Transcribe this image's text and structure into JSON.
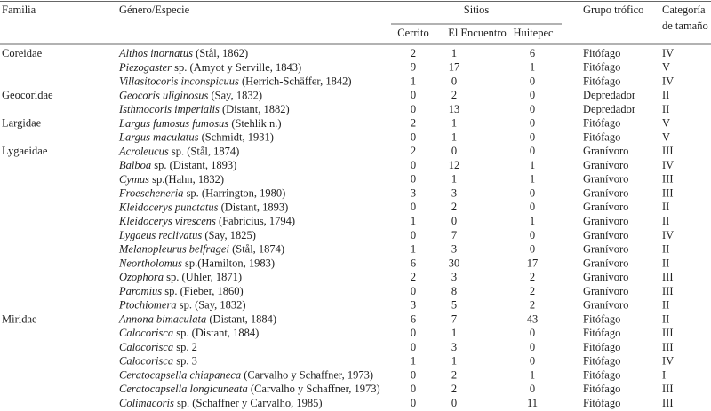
{
  "header": {
    "familia": "Familia",
    "especie": "Género/Especie",
    "sitios": "Sitios",
    "cerrito": "Cerrito",
    "encuentro": "El Encuentro",
    "huitepec": "Huitepec",
    "grupo": "Grupo trófico",
    "categoria_1": "Categoría",
    "categoria_2": "de tamaño"
  },
  "table": {
    "rows": [
      {
        "familia": "Coreidae",
        "taxon": "Althos inornatus",
        "autor": "(Stål, 1862)",
        "cerrito": 2,
        "encuentro": 1,
        "huitepec": 6,
        "grupo": "Fitófago",
        "categoria": "IV"
      },
      {
        "taxon": "Piezogaster",
        "autor": "sp. (Amyot y Serville, 1843)",
        "cerrito": 9,
        "encuentro": 17,
        "huitepec": 1,
        "grupo": "Fitófago",
        "categoria": "V"
      },
      {
        "taxon": "Villasitocoris inconspicuus",
        "autor": "(Herrich-Schäffer, 1842)",
        "cerrito": 1,
        "encuentro": 0,
        "huitepec": 0,
        "grupo": "Fitófago",
        "categoria": "IV"
      },
      {
        "familia": "Geocoridae",
        "taxon": "Geocoris uliginosus",
        "autor": "(Say, 1832)",
        "cerrito": 0,
        "encuentro": 2,
        "huitepec": 0,
        "grupo": "Depredador",
        "categoria": "II"
      },
      {
        "taxon": "Isthmocoris imperialis",
        "autor": "(Distant, 1882)",
        "cerrito": 0,
        "encuentro": 13,
        "huitepec": 0,
        "grupo": "Depredador",
        "categoria": "II"
      },
      {
        "familia": "Largidae",
        "taxon": "Largus fumosus fumosus",
        "autor": "(Stehlik n.)",
        "cerrito": 2,
        "encuentro": 1,
        "huitepec": 0,
        "grupo": "Fitófago",
        "categoria": "V"
      },
      {
        "taxon": "Largus maculatus",
        "autor": "(Schmidt, 1931)",
        "cerrito": 0,
        "encuentro": 1,
        "huitepec": 0,
        "grupo": "Fitófago",
        "categoria": "V"
      },
      {
        "familia": "Lygaeidae",
        "taxon": "Acroleucus",
        "autor": "sp. (Stål, 1874)",
        "cerrito": 2,
        "encuentro": 0,
        "huitepec": 0,
        "grupo": "Granívoro",
        "categoria": "III"
      },
      {
        "taxon": "Balboa",
        "autor": "sp. (Distant, 1893)",
        "cerrito": 0,
        "encuentro": 12,
        "huitepec": 1,
        "grupo": "Granívoro",
        "categoria": "IV"
      },
      {
        "taxon": "Cymus",
        "autor": "sp.(Hahn, 1832)",
        "cerrito": 0,
        "encuentro": 1,
        "huitepec": 1,
        "grupo": "Granívoro",
        "categoria": "III"
      },
      {
        "taxon": "Froescheneria",
        "autor": "sp. (Harrington, 1980)",
        "cerrito": 3,
        "encuentro": 3,
        "huitepec": 0,
        "grupo": "Granívoro",
        "categoria": "III"
      },
      {
        "taxon": "Kleidocerys punctatus",
        "autor": "(Distant, 1893)",
        "cerrito": 0,
        "encuentro": 2,
        "huitepec": 0,
        "grupo": "Granívoro",
        "categoria": "II"
      },
      {
        "taxon": "Kleidocerys virescens",
        "autor": "(Fabricius, 1794)",
        "cerrito": 1,
        "encuentro": 0,
        "huitepec": 1,
        "grupo": "Granívoro",
        "categoria": "II"
      },
      {
        "taxon": "Lygaeus reclivatus",
        "autor": "(Say, 1825)",
        "cerrito": 0,
        "encuentro": 7,
        "huitepec": 0,
        "grupo": "Granívoro",
        "categoria": "IV"
      },
      {
        "taxon": "Melanopleurus belfragei",
        "autor": "(Stål, 1874)",
        "cerrito": 1,
        "encuentro": 3,
        "huitepec": 0,
        "grupo": "Granívoro",
        "categoria": "II"
      },
      {
        "taxon": "Neortholomus",
        "autor": "sp.(Hamilton, 1983)",
        "cerrito": 6,
        "encuentro": 30,
        "huitepec": 17,
        "grupo": "Granívoro",
        "categoria": "II"
      },
      {
        "taxon": "Ozophora",
        "autor": "sp. (Uhler, 1871)",
        "cerrito": 2,
        "encuentro": 3,
        "huitepec": 2,
        "grupo": "Granívoro",
        "categoria": "III"
      },
      {
        "taxon": "Paromius",
        "autor": "sp. (Fieber, 1860)",
        "cerrito": 0,
        "encuentro": 8,
        "huitepec": 2,
        "grupo": "Granívoro",
        "categoria": "III"
      },
      {
        "taxon": "Ptochiomera",
        "autor": "sp. (Say, 1832)",
        "cerrito": 3,
        "encuentro": 5,
        "huitepec": 2,
        "grupo": "Granívoro",
        "categoria": "II"
      },
      {
        "familia": "Miridae",
        "taxon": "Annona bimaculata",
        "autor": "(Distant, 1884)",
        "cerrito": 6,
        "encuentro": 7,
        "huitepec": 43,
        "grupo": "Fitófago",
        "categoria": "II"
      },
      {
        "taxon": "Calocorisca",
        "autor": "sp. (Distant, 1884)",
        "cerrito": 0,
        "encuentro": 1,
        "huitepec": 0,
        "grupo": "Fitófago",
        "categoria": "III"
      },
      {
        "taxon": "Calocorisca",
        "autor": "sp. 2",
        "cerrito": 0,
        "encuentro": 3,
        "huitepec": 0,
        "grupo": "Fitófago",
        "categoria": "III"
      },
      {
        "taxon": "Calocorisca",
        "autor": "sp. 3",
        "cerrito": 1,
        "encuentro": 1,
        "huitepec": 0,
        "grupo": "Fitófago",
        "categoria": "IV"
      },
      {
        "taxon": "Ceratocapsella chiapaneca",
        "autor": "(Carvalho y Schaffner, 1973)",
        "cerrito": 0,
        "encuentro": 2,
        "huitepec": 1,
        "grupo": "Fitófago",
        "categoria": "I"
      },
      {
        "taxon": "Ceratocapsella longicuneata",
        "autor": "(Carvalho y Schaffner, 1973)",
        "cerrito": 0,
        "encuentro": 2,
        "huitepec": 0,
        "grupo": "Fitófago",
        "categoria": "III"
      },
      {
        "taxon": "Colimacoris",
        "autor": "sp. (Schaffner y Carvalho, 1985)",
        "cerrito": 0,
        "encuentro": 0,
        "huitepec": 11,
        "grupo": "Fitófago",
        "categoria": "III"
      }
    ]
  }
}
